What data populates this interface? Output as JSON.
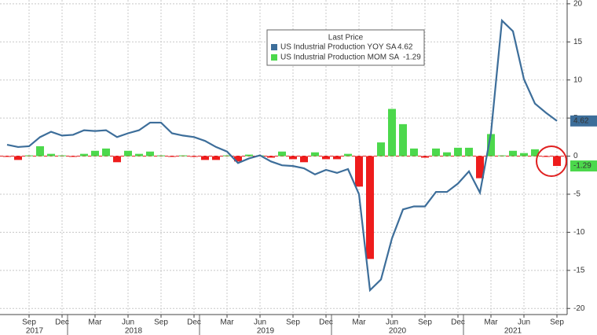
{
  "chart_data": {
    "type": "bar_line",
    "legend_title": "Last Price",
    "categories": [
      null,
      null,
      "Sep",
      null,
      null,
      "Dec",
      null,
      null,
      "Mar",
      null,
      null,
      "Jun",
      null,
      null,
      "Sep",
      null,
      null,
      "Dec",
      null,
      null,
      "Mar",
      null,
      null,
      "Jun",
      null,
      null,
      "Sep",
      null,
      null,
      "Dec",
      null,
      null,
      "Mar",
      null,
      null,
      "Jun",
      null,
      null,
      "Sep",
      null,
      null,
      "Dec",
      null,
      null,
      "Mar",
      null,
      null,
      "Jun",
      null,
      null,
      "Sep"
    ],
    "x_groups": [
      {
        "label": "2017",
        "categories": [
          0,
          5
        ]
      },
      {
        "label": "2018",
        "categories": [
          6,
          17
        ]
      },
      {
        "label": "2019",
        "categories": [
          18,
          29
        ]
      },
      {
        "label": "2020",
        "categories": [
          30,
          41
        ]
      },
      {
        "label": "2021",
        "categories": [
          42,
          50
        ]
      }
    ],
    "series": [
      {
        "name": "US Industrial Production YOY SA",
        "type": "line",
        "color": "#3d6e9a",
        "values": [
          1.5,
          1.2,
          1.3,
          2.5,
          3.2,
          2.7,
          2.8,
          3.4,
          3.3,
          3.4,
          2.5,
          3.0,
          3.4,
          4.4,
          4.4,
          3.0,
          2.7,
          2.5,
          2.0,
          1.2,
          0.6,
          -0.9,
          -0.3,
          0.1,
          -0.7,
          -1.2,
          -1.3,
          -1.6,
          -2.4,
          -1.8,
          -2.2,
          -1.7,
          -5.0,
          -17.6,
          -16.2,
          -10.8,
          -7.0,
          -6.6,
          -6.6,
          -4.7,
          -4.7,
          -3.6,
          -2.0,
          -4.8,
          3.0,
          17.8,
          16.4,
          10.1,
          6.9,
          5.7,
          4.62
        ]
      },
      {
        "name": "US Industrial Production MOM SA",
        "type": "bar",
        "color": "#4cd84c",
        "negative_color": "#ee1c1c",
        "values": [
          -0.1,
          -0.5,
          0.1,
          1.3,
          0.3,
          0.1,
          -0.1,
          0.3,
          0.7,
          1.0,
          -0.8,
          0.7,
          0.3,
          0.6,
          0.1,
          -0.1,
          0.1,
          -0.1,
          -0.5,
          -0.5,
          0.1,
          -0.7,
          0.2,
          0.1,
          -0.2,
          0.6,
          -0.4,
          -0.8,
          0.5,
          -0.4,
          -0.4,
          0.3,
          -4.0,
          -13.5,
          1.8,
          6.2,
          4.2,
          1.0,
          -0.2,
          1.0,
          0.5,
          1.1,
          1.1,
          -2.9,
          2.9,
          0.1,
          0.7,
          0.4,
          0.9,
          -0.1,
          -1.29
        ]
      }
    ],
    "ylim": [
      -20.8,
      20.5
    ],
    "yticks": [
      -20,
      -15,
      -10,
      -5,
      0,
      5,
      10,
      15,
      20
    ],
    "grid": true
  }
}
